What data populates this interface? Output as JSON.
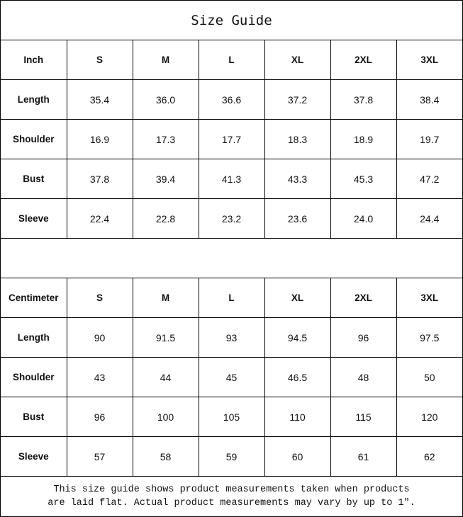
{
  "title": "Size Guide",
  "inch": {
    "header": [
      "Inch",
      "S",
      "M",
      "L",
      "XL",
      "2XL",
      "3XL"
    ],
    "rows": [
      [
        "Length",
        "35.4",
        "36.0",
        "36.6",
        "37.2",
        "37.8",
        "38.4"
      ],
      [
        "Shoulder",
        "16.9",
        "17.3",
        "17.7",
        "18.3",
        "18.9",
        "19.7"
      ],
      [
        "Bust",
        "37.8",
        "39.4",
        "41.3",
        "43.3",
        "45.3",
        "47.2"
      ],
      [
        "Sleeve",
        "22.4",
        "22.8",
        "23.2",
        "23.6",
        "24.0",
        "24.4"
      ]
    ]
  },
  "cm": {
    "header": [
      "Centimeter",
      "S",
      "M",
      "L",
      "XL",
      "2XL",
      "3XL"
    ],
    "rows": [
      [
        "Length",
        "90",
        "91.5",
        "93",
        "94.5",
        "96",
        "97.5"
      ],
      [
        "Shoulder",
        "43",
        "44",
        "45",
        "46.5",
        "48",
        "50"
      ],
      [
        "Bust",
        "96",
        "100",
        "105",
        "110",
        "115",
        "120"
      ],
      [
        "Sleeve",
        "57",
        "58",
        "59",
        "60",
        "61",
        "62"
      ]
    ]
  },
  "note": {
    "line1": "This size guide shows product measurements taken when products",
    "line2": "are laid flat. Actual product measurements may vary by up to 1″."
  }
}
